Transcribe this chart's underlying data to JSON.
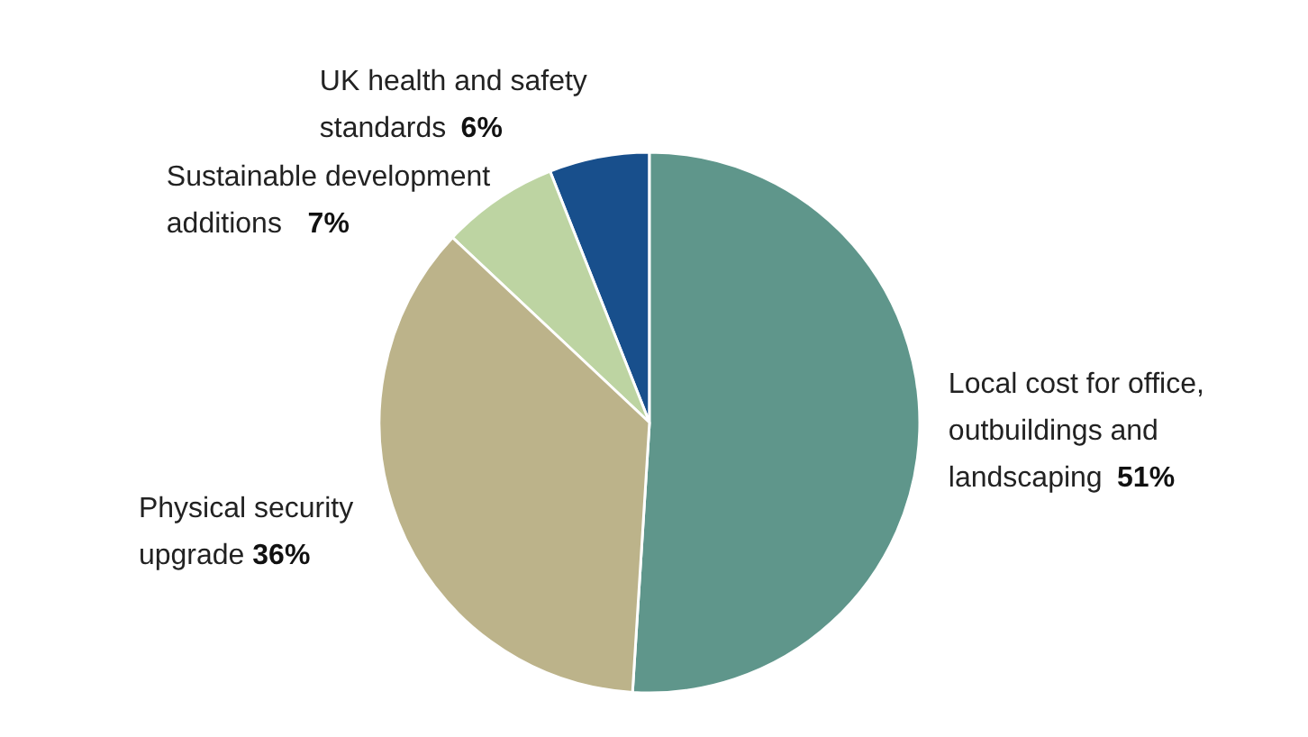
{
  "chart_data": {
    "type": "pie",
    "categories": [
      "Local cost for office, outbuildings and landscaping",
      "Physical security upgrade",
      "Sustainable development additions",
      "UK health and safety standards"
    ],
    "values": [
      51,
      36,
      7,
      6
    ],
    "colors": [
      "#5f968b",
      "#bcb38a",
      "#bdd4a2",
      "#184f8c"
    ],
    "value_labels": [
      "51%",
      "36%",
      "7%",
      "6%"
    ]
  }
}
